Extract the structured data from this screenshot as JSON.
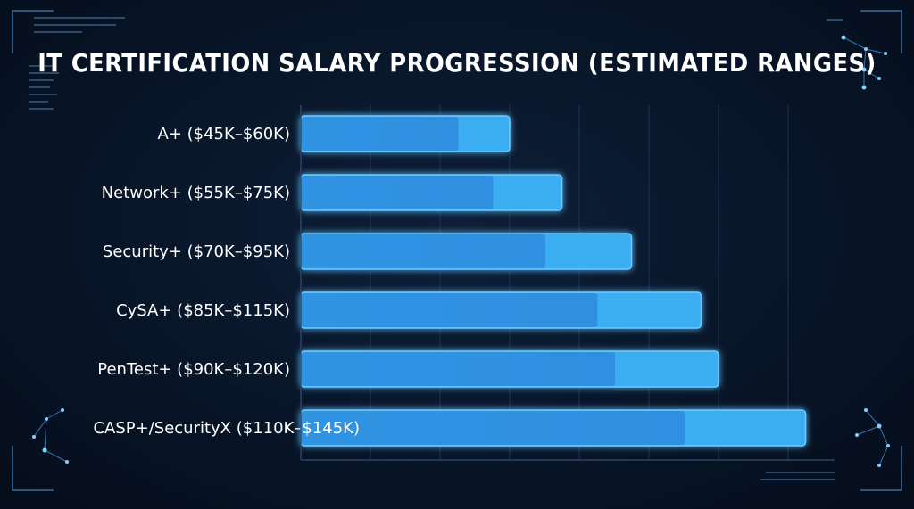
{
  "chart_data": {
    "type": "bar",
    "orientation": "horizontal",
    "title": "IT CERTIFICATION SALARY PROGRESSION (ESTIMATED RANGES)",
    "categories": [
      "A+ ($45K–$60K)",
      "Network+ ($55K–$75K)",
      "Security+ ($70K–$95K)",
      "CySA+ ($85K–$115K)",
      "PenTest+ ($90K–$120K)",
      "CASP+/SecurityX ($110K–$145K)"
    ],
    "series": [
      {
        "values_min": [
          45,
          55,
          70,
          85,
          90,
          110
        ],
        "values_max": [
          60,
          75,
          95,
          115,
          120,
          145
        ]
      }
    ],
    "units": "$K",
    "xlim": [
      0,
      150
    ],
    "grid": true,
    "colors": {
      "bar_main": "#2f8fe0",
      "bar_light": "#3aaef2",
      "bar_edge": "#6ec8ff",
      "grid": "#1e3250",
      "axis": "#2a4466",
      "accent": "#2c6fb0"
    }
  }
}
